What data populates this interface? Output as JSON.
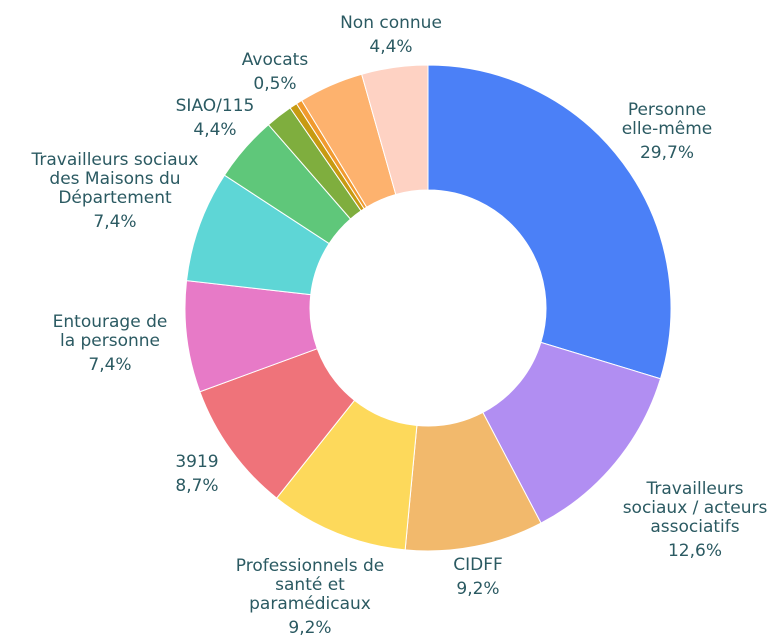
{
  "chart_data": {
    "type": "donut",
    "categories": [
      "Personne\nelle-même",
      "Travailleurs\nsociaux / acteurs\nassociatifs",
      "CIDFF",
      "Professionnels de\nsanté et\nparamédicaux",
      "3919",
      "Entourage de\nla personne",
      "Travailleurs sociaux\ndes Maisons du\nDépartement",
      "SIAO/115",
      null,
      "Avocats",
      null,
      null,
      "Non connue"
    ],
    "values": [
      29.7,
      12.6,
      9.2,
      9.2,
      8.7,
      7.4,
      7.4,
      4.4,
      1.8,
      0.5,
      0.4,
      4.3,
      4.4
    ],
    "value_labels": [
      "29,7%",
      "12,6%",
      "9,2%",
      "9,2%",
      "8,7%",
      "7,4%",
      "7,4%",
      "4,4%",
      null,
      "0,5%",
      null,
      null,
      "4,4%"
    ],
    "colors": [
      "#4b80f7",
      "#b18ef2",
      "#f2b96c",
      "#fdd95b",
      "#ef737a",
      "#e77ac7",
      "#5ed6d6",
      "#5fc77a",
      "#7fae3e",
      "#c79a12",
      "#f19a2e",
      "#fdb26e",
      "#fed2c3"
    ]
  }
}
